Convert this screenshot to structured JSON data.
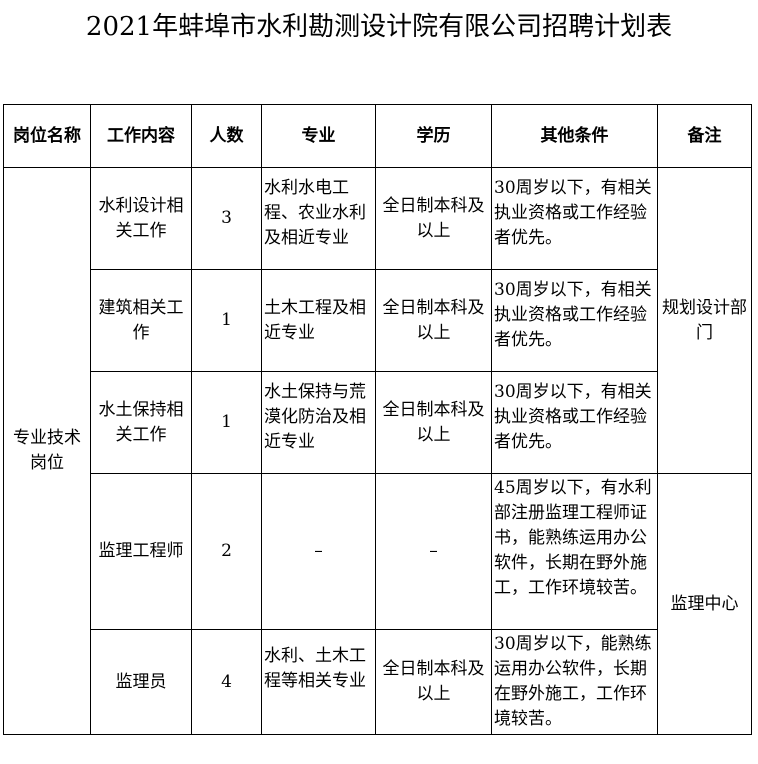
{
  "title": "2021年蚌埠市水利勘测设计院有限公司招聘计划表",
  "headers": [
    "岗位名称",
    "工作内容",
    "人数",
    "专业",
    "学历",
    "其他条件",
    "备注"
  ],
  "position": "专业技术岗位",
  "rows": [
    {
      "work": "水利设计相关工作",
      "count": "3",
      "major": "水利水电工程、农业水利及相近专业",
      "edu": "全日制本科及以上",
      "cond": "30周岁以下，有相关执业资格或工作经验者优先。"
    },
    {
      "work": "建筑相关工作",
      "count": "1",
      "major": "土木工程及相近专业",
      "edu": "全日制本科及以上",
      "cond": "30周岁以下，有相关执业资格或工作经验者优先。"
    },
    {
      "work": "水土保持相关工作",
      "count": "1",
      "major": "水土保持与荒漠化防治及相近专业",
      "edu": "全日制本科及以上",
      "cond": "30周岁以下，有相关执业资格或工作经验者优先。"
    },
    {
      "work": "监理工程师",
      "count": "2",
      "major": "–",
      "edu": "–",
      "cond": "45周岁以下，有水利部注册监理工程师证书，能熟练运用办公软件，长期在野外施工，工作环境较苦。"
    },
    {
      "work": "监理员",
      "count": "4",
      "major": "水利、土木工程等相关专业",
      "edu": "全日制本科及以上",
      "cond": "30周岁以下，能熟练运用办公软件，长期在野外施工，工作环境较苦。"
    }
  ],
  "notes": [
    "规划设计部门",
    "监理中心"
  ]
}
